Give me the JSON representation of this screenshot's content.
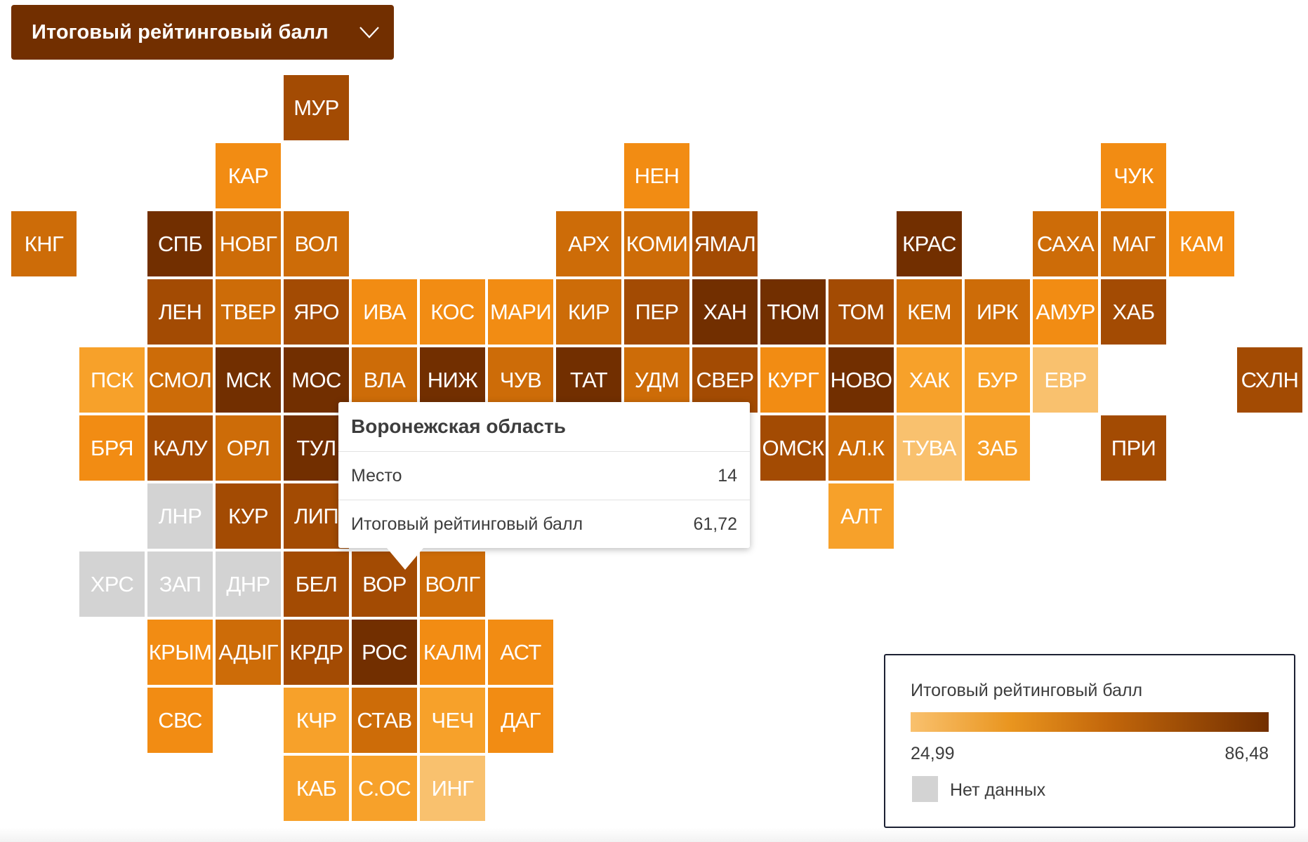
{
  "selector": {
    "label": "Итоговый рейтинговый балл"
  },
  "map": {
    "min_value": 24.99,
    "max_value": 86.48,
    "colors": {
      "low": "#f9c16e",
      "mid_low": "#f7a12a",
      "mid": "#f28c13",
      "mid_high": "#cd6c08",
      "high": "#a34b03",
      "very_high": "#722f00",
      "no_data": "#d3d3d3"
    },
    "tiles": [
      {
        "code": "МУР",
        "col": 4,
        "row": 0,
        "level": "high"
      },
      {
        "code": "КАР",
        "col": 3,
        "row": 1,
        "level": "mid"
      },
      {
        "code": "НЕН",
        "col": 9,
        "row": 1,
        "level": "mid"
      },
      {
        "code": "ЧУК",
        "col": 16,
        "row": 1,
        "level": "mid"
      },
      {
        "code": "КНГ",
        "col": 0,
        "row": 2,
        "level": "mid_high"
      },
      {
        "code": "СПБ",
        "col": 2,
        "row": 2,
        "level": "very_high"
      },
      {
        "code": "НОВГ",
        "col": 3,
        "row": 2,
        "level": "mid_high"
      },
      {
        "code": "ВОЛ",
        "col": 4,
        "row": 2,
        "level": "mid_high"
      },
      {
        "code": "АРХ",
        "col": 8,
        "row": 2,
        "level": "mid_high"
      },
      {
        "code": "КОМИ",
        "col": 9,
        "row": 2,
        "level": "mid_high"
      },
      {
        "code": "ЯМАЛ",
        "col": 10,
        "row": 2,
        "level": "high"
      },
      {
        "code": "КРАС",
        "col": 13,
        "row": 2,
        "level": "very_high"
      },
      {
        "code": "САХА",
        "col": 15,
        "row": 2,
        "level": "mid_high"
      },
      {
        "code": "МАГ",
        "col": 16,
        "row": 2,
        "level": "mid_high"
      },
      {
        "code": "КАМ",
        "col": 17,
        "row": 2,
        "level": "mid"
      },
      {
        "code": "ЛЕН",
        "col": 2,
        "row": 3,
        "level": "high"
      },
      {
        "code": "ТВЕР",
        "col": 3,
        "row": 3,
        "level": "mid_high"
      },
      {
        "code": "ЯРО",
        "col": 4,
        "row": 3,
        "level": "high"
      },
      {
        "code": "ИВА",
        "col": 5,
        "row": 3,
        "level": "mid"
      },
      {
        "code": "КОС",
        "col": 6,
        "row": 3,
        "level": "mid"
      },
      {
        "code": "МАРИ",
        "col": 7,
        "row": 3,
        "level": "mid"
      },
      {
        "code": "КИР",
        "col": 8,
        "row": 3,
        "level": "mid_high"
      },
      {
        "code": "ПЕР",
        "col": 9,
        "row": 3,
        "level": "high"
      },
      {
        "code": "ХАН",
        "col": 10,
        "row": 3,
        "level": "very_high"
      },
      {
        "code": "ТЮМ",
        "col": 11,
        "row": 3,
        "level": "very_high"
      },
      {
        "code": "ТОМ",
        "col": 12,
        "row": 3,
        "level": "high"
      },
      {
        "code": "КЕМ",
        "col": 13,
        "row": 3,
        "level": "mid_high"
      },
      {
        "code": "ИРК",
        "col": 14,
        "row": 3,
        "level": "mid_high"
      },
      {
        "code": "АМУР",
        "col": 15,
        "row": 3,
        "level": "mid"
      },
      {
        "code": "ХАБ",
        "col": 16,
        "row": 3,
        "level": "high"
      },
      {
        "code": "ПСК",
        "col": 1,
        "row": 4,
        "level": "mid_low"
      },
      {
        "code": "СМОЛ",
        "col": 2,
        "row": 4,
        "level": "mid_high"
      },
      {
        "code": "МСК",
        "col": 3,
        "row": 4,
        "level": "very_high"
      },
      {
        "code": "МОС",
        "col": 4,
        "row": 4,
        "level": "very_high"
      },
      {
        "code": "ВЛА",
        "col": 5,
        "row": 4,
        "level": "mid_high"
      },
      {
        "code": "НИЖ",
        "col": 6,
        "row": 4,
        "level": "very_high"
      },
      {
        "code": "ЧУВ",
        "col": 7,
        "row": 4,
        "level": "mid_high"
      },
      {
        "code": "ТАТ",
        "col": 8,
        "row": 4,
        "level": "very_high"
      },
      {
        "code": "УДМ",
        "col": 9,
        "row": 4,
        "level": "mid_high"
      },
      {
        "code": "СВЕР",
        "col": 10,
        "row": 4,
        "level": "high"
      },
      {
        "code": "КУРГ",
        "col": 11,
        "row": 4,
        "level": "mid"
      },
      {
        "code": "НОВО",
        "col": 12,
        "row": 4,
        "level": "very_high"
      },
      {
        "code": "ХАК",
        "col": 13,
        "row": 4,
        "level": "mid_low"
      },
      {
        "code": "БУР",
        "col": 14,
        "row": 4,
        "level": "mid_low"
      },
      {
        "code": "ЕВР",
        "col": 15,
        "row": 4,
        "level": "low"
      },
      {
        "code": "СХЛН",
        "col": 18,
        "row": 4,
        "level": "high"
      },
      {
        "code": "БРЯ",
        "col": 1,
        "row": 5,
        "level": "mid"
      },
      {
        "code": "КАЛУ",
        "col": 2,
        "row": 5,
        "level": "high"
      },
      {
        "code": "ОРЛ",
        "col": 3,
        "row": 5,
        "level": "mid_high"
      },
      {
        "code": "ТУЛ",
        "col": 4,
        "row": 5,
        "level": "very_high"
      },
      {
        "code": "ОМСК",
        "col": 11,
        "row": 5,
        "level": "high"
      },
      {
        "code": "АЛ.К",
        "col": 12,
        "row": 5,
        "level": "mid_high"
      },
      {
        "code": "ТУВА",
        "col": 13,
        "row": 5,
        "level": "low"
      },
      {
        "code": "ЗАБ",
        "col": 14,
        "row": 5,
        "level": "mid_low"
      },
      {
        "code": "ПРИ",
        "col": 16,
        "row": 5,
        "level": "high"
      },
      {
        "code": "ЛНР",
        "col": 2,
        "row": 6,
        "level": "no_data"
      },
      {
        "code": "КУР",
        "col": 3,
        "row": 6,
        "level": "high"
      },
      {
        "code": "ЛИП",
        "col": 4,
        "row": 6,
        "level": "high"
      },
      {
        "code": "АЛТ",
        "col": 12,
        "row": 6,
        "level": "mid_low"
      },
      {
        "code": "ХРС",
        "col": 1,
        "row": 7,
        "level": "no_data"
      },
      {
        "code": "ЗАП",
        "col": 2,
        "row": 7,
        "level": "no_data"
      },
      {
        "code": "ДНР",
        "col": 3,
        "row": 7,
        "level": "no_data"
      },
      {
        "code": "БЕЛ",
        "col": 4,
        "row": 7,
        "level": "high"
      },
      {
        "code": "ВОР",
        "col": 5,
        "row": 7,
        "level": "high"
      },
      {
        "code": "ВОЛГ",
        "col": 6,
        "row": 7,
        "level": "mid_high"
      },
      {
        "code": "КРЫМ",
        "col": 2,
        "row": 8,
        "level": "mid"
      },
      {
        "code": "АДЫГ",
        "col": 3,
        "row": 8,
        "level": "mid_high"
      },
      {
        "code": "КРДР",
        "col": 4,
        "row": 8,
        "level": "high"
      },
      {
        "code": "РОС",
        "col": 5,
        "row": 8,
        "level": "very_high"
      },
      {
        "code": "КАЛМ",
        "col": 6,
        "row": 8,
        "level": "mid"
      },
      {
        "code": "АСТ",
        "col": 7,
        "row": 8,
        "level": "mid"
      },
      {
        "code": "СВС",
        "col": 2,
        "row": 9,
        "level": "mid"
      },
      {
        "code": "КЧР",
        "col": 4,
        "row": 9,
        "level": "mid_low"
      },
      {
        "code": "СТАВ",
        "col": 5,
        "row": 9,
        "level": "mid_high"
      },
      {
        "code": "ЧЕЧ",
        "col": 6,
        "row": 9,
        "level": "mid_low"
      },
      {
        "code": "ДАГ",
        "col": 7,
        "row": 9,
        "level": "mid"
      },
      {
        "code": "КАБ",
        "col": 4,
        "row": 10,
        "level": "mid_low"
      },
      {
        "code": "С.ОС",
        "col": 5,
        "row": 10,
        "level": "mid_low"
      },
      {
        "code": "ИНГ",
        "col": 6,
        "row": 10,
        "level": "low"
      }
    ]
  },
  "tooltip": {
    "title": "Воронежская область",
    "rows": [
      {
        "label": "Место",
        "value": "14"
      },
      {
        "label": "Итоговый рейтинговый балл",
        "value": "61,72"
      }
    ]
  },
  "legend": {
    "title": "Итоговый рейтинговый балл",
    "min_label": "24,99",
    "max_label": "86,48",
    "nodata_label": "Нет данных",
    "gradient_start": "#f9c16e",
    "gradient_end": "#722f00"
  }
}
